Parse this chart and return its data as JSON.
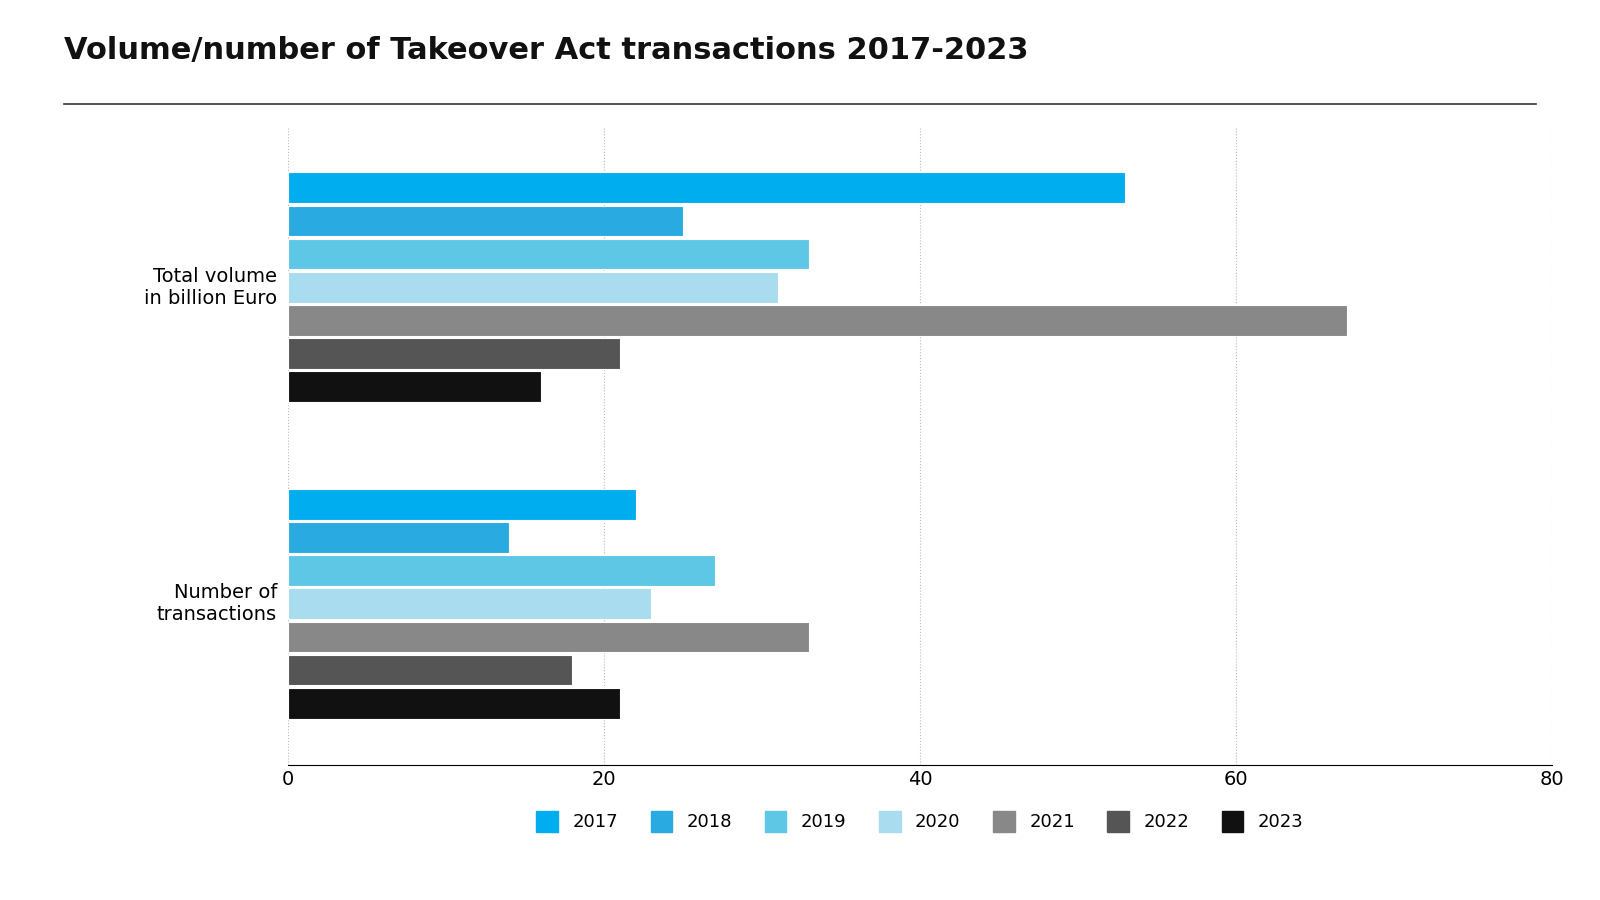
{
  "title": "Volume/number of Takeover Act transactions 2017-2023",
  "categories": [
    "Total volume\nin billion Euro",
    "Number of\ntransactions"
  ],
  "years": [
    "2017",
    "2018",
    "2019",
    "2020",
    "2021",
    "2022",
    "2023"
  ],
  "colors": [
    "#00AEEF",
    "#29ABE2",
    "#5DC7E5",
    "#A8DCEE",
    "#888888",
    "#555555",
    "#111111"
  ],
  "total_volume": [
    53,
    25,
    33,
    31,
    67,
    21,
    16
  ],
  "num_transactions": [
    22,
    14,
    27,
    23,
    33,
    18,
    21
  ],
  "xlim": [
    0,
    80
  ],
  "xticks": [
    0,
    20,
    40,
    60,
    80
  ],
  "background_color": "#ffffff",
  "title_fontsize": 22,
  "axis_fontsize": 14,
  "legend_fontsize": 13
}
